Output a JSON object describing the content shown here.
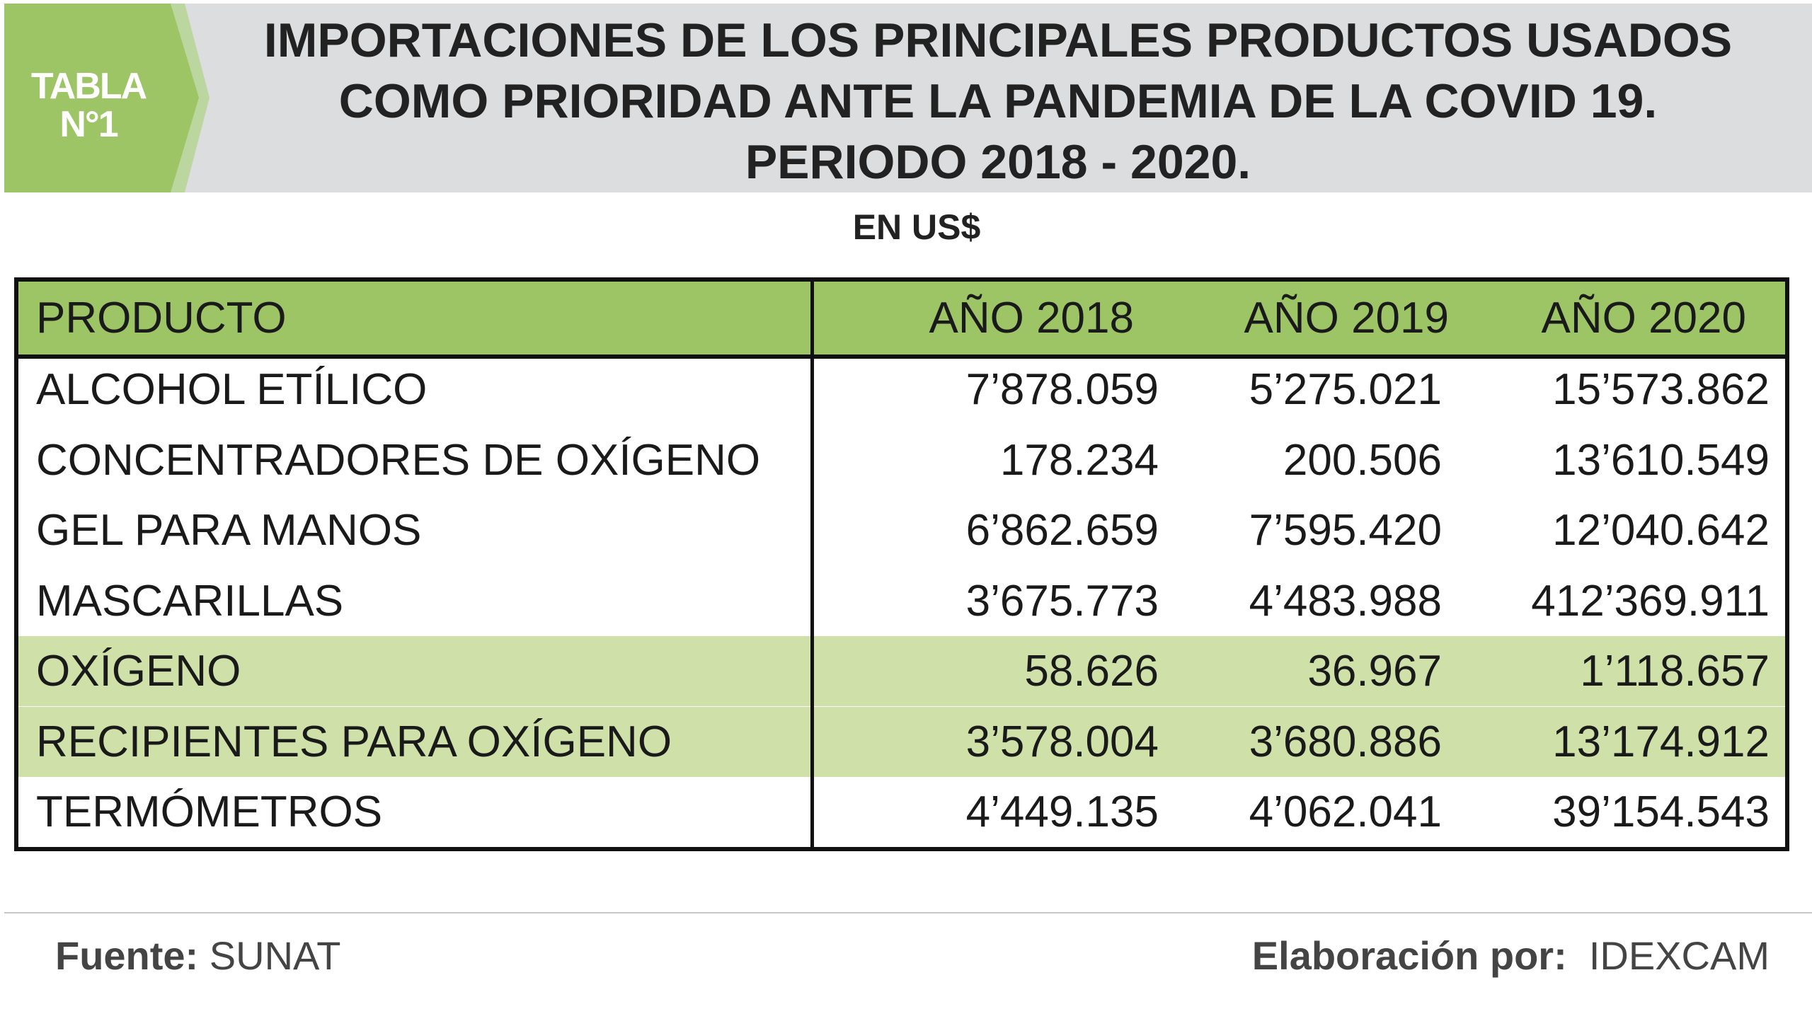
{
  "tag": {
    "line1": "TABLA",
    "line2": "N°1"
  },
  "title": {
    "lines": [
      "IMPORTACIONES DE LOS PRINCIPALES PRODUCTOS USADOS",
      "COMO PRIORIDAD ANTE LA PANDEMIA DE LA COVID 19.",
      "PERIODO 2018 - 2020."
    ]
  },
  "unit": "EN US$",
  "table": {
    "headers": [
      "PRODUCTO",
      "AÑO 2018",
      "AÑO 2019",
      "AÑO 2020"
    ],
    "rows": [
      {
        "product": "ALCOHOL ETÍLICO",
        "y2018": "7’878.059",
        "y2019": "5’275.021",
        "y2020": "15’573.862"
      },
      {
        "product": "CONCENTRADORES DE OXÍGENO",
        "y2018": "178.234",
        "y2019": "200.506",
        "y2020": "13’610.549"
      },
      {
        "product": "GEL PARA MANOS",
        "y2018": "6’862.659",
        "y2019": "7’595.420",
        "y2020": "12’040.642"
      },
      {
        "product": "MASCARILLAS",
        "y2018": "3’675.773",
        "y2019": "4’483.988",
        "y2020": "412’369.911"
      },
      {
        "product": "OXÍGENO",
        "y2018": "58.626",
        "y2019": "36.967",
        "y2020": "1’118.657"
      },
      {
        "product": "RECIPIENTES PARA OXÍGENO",
        "y2018": "3’578.004",
        "y2019": "3’680.886",
        "y2020": "13’174.912"
      },
      {
        "product": "TERMÓMETROS",
        "y2018": "4’449.135",
        "y2019": "4’062.041",
        "y2020": "39’154.543"
      }
    ]
  },
  "footer": {
    "source_label": "Fuente:",
    "source_value": "SUNAT",
    "credit_label": "Elaboración por:",
    "credit_value": "IDEXCAM"
  },
  "colors": {
    "accent_green": "#9dc566",
    "highlight_green": "#cfe1a8",
    "band_gray": "#dcdddf"
  }
}
